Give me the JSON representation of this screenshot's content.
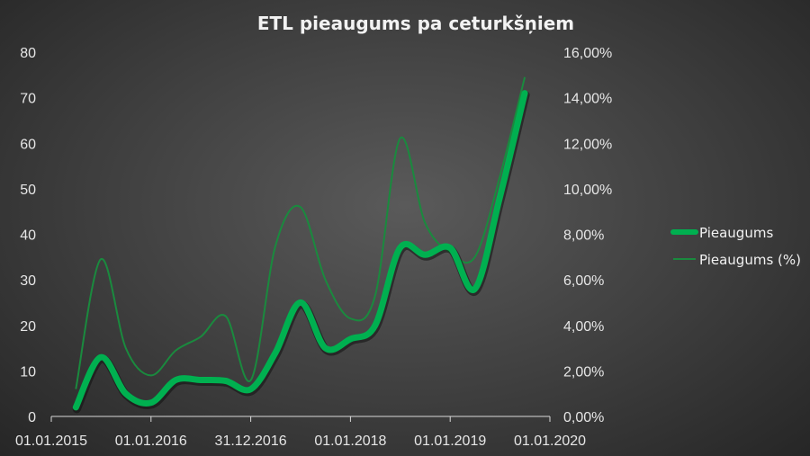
{
  "chart_data": {
    "type": "line",
    "title": "ETL pieaugums pa ceturkšņiem",
    "x_tick_labels": [
      "01.01.2015",
      "01.01.2016",
      "31.12.2016",
      "01.01.2018",
      "01.01.2019",
      "01.01.2020"
    ],
    "y_left_ticks": [
      "0",
      "10",
      "20",
      "30",
      "40",
      "50",
      "60",
      "70",
      "80"
    ],
    "y_right_ticks": [
      "0,00%",
      "2,00%",
      "4,00%",
      "6,00%",
      "8,00%",
      "10,00%",
      "12,00%",
      "14,00%",
      "16,00%"
    ],
    "ylim_left": [
      0,
      80
    ],
    "ylim_right": [
      0,
      16
    ],
    "xlim": [
      "2015-01-01",
      "2020-01-01"
    ],
    "legend_position": "right",
    "grid": false,
    "series": [
      {
        "name": "Pieaugums",
        "axis": "left",
        "color": "#00b050",
        "x": [
          "2015-04-01",
          "2015-07-01",
          "2015-10-01",
          "2016-01-01",
          "2016-04-01",
          "2016-07-01",
          "2016-10-01",
          "2017-01-01",
          "2017-04-01",
          "2017-07-01",
          "2017-10-01",
          "2018-01-01",
          "2018-04-01",
          "2018-07-01",
          "2018-10-01",
          "2019-01-01",
          "2019-04-01",
          "2019-07-01",
          "2019-10-01"
        ],
        "values": [
          2,
          13,
          5,
          3,
          8,
          8,
          7.8,
          6,
          14,
          25,
          15,
          17,
          20,
          37,
          35.5,
          37,
          28,
          48,
          71
        ]
      },
      {
        "name": "Pieaugums (%)",
        "axis": "right",
        "color": "#00b050",
        "x": [
          "2015-04-01",
          "2015-07-01",
          "2015-10-01",
          "2016-01-01",
          "2016-04-01",
          "2016-07-01",
          "2016-10-01",
          "2017-01-01",
          "2017-04-01",
          "2017-07-01",
          "2017-10-01",
          "2018-01-01",
          "2018-04-01",
          "2018-07-01",
          "2018-10-01",
          "2019-01-01",
          "2019-04-01",
          "2019-07-01",
          "2019-10-01"
        ],
        "values": [
          1.2,
          6.9,
          3.0,
          1.8,
          2.9,
          3.5,
          4.4,
          1.6,
          7.5,
          9.2,
          6.0,
          4.3,
          5.3,
          12.2,
          8.5,
          7.2,
          7.0,
          10.5,
          14.9
        ]
      }
    ]
  }
}
